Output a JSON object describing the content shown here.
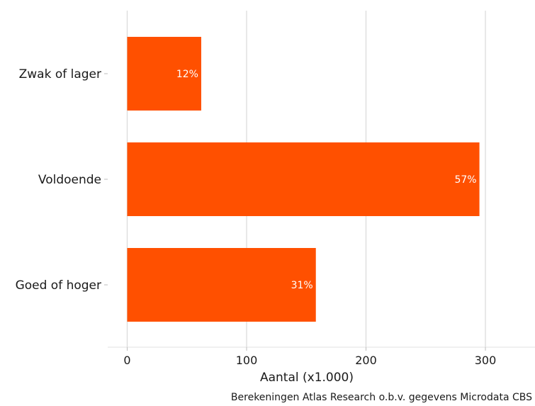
{
  "chart_data": {
    "type": "bar",
    "orientation": "horizontal",
    "categories": [
      "Zwak of lager",
      "Voldoende",
      "Goed of hoger"
    ],
    "values": [
      62,
      295,
      158
    ],
    "data_labels": [
      "12%",
      "57%",
      "31%"
    ],
    "xlabel": "Aantal (x1.000)",
    "ylabel": "",
    "xlim": [
      0,
      340
    ],
    "xticks": [
      0,
      100,
      200,
      300
    ],
    "xtick_labels": [
      "0",
      "100",
      "200",
      "300"
    ],
    "grid": "vertical major",
    "bar_color": "#ff5000",
    "caption": "Berekeningen Atlas Research o.b.v. gegevens Microdata CBS"
  }
}
